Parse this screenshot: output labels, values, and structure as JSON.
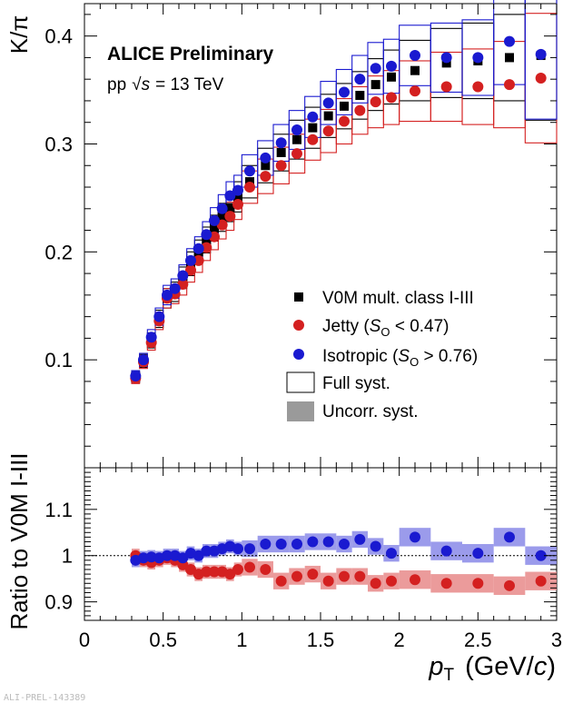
{
  "chart_data": [
    {
      "type": "scatter",
      "panel": "top",
      "ylabel": "K/π",
      "ylim": [
        0.0,
        0.43
      ],
      "xlim": [
        0,
        3
      ],
      "yticks": [
        "0.1",
        "0.2",
        "0.3",
        "0.4"
      ],
      "ytick_values": [
        0.1,
        0.2,
        0.3,
        0.4
      ],
      "title": "ALICE Preliminary",
      "subtitle_prefix": "pp",
      "subtitle_sqrt": "√",
      "subtitle_s": "s",
      "subtitle_suffix": "= 13 TeV",
      "x": [
        0.325,
        0.375,
        0.425,
        0.475,
        0.525,
        0.575,
        0.625,
        0.675,
        0.725,
        0.775,
        0.825,
        0.875,
        0.925,
        0.975,
        1.05,
        1.15,
        1.25,
        1.35,
        1.45,
        1.55,
        1.65,
        1.75,
        1.85,
        1.95,
        2.1,
        2.3,
        2.5,
        2.7,
        2.9
      ],
      "bin_width": [
        0.05,
        0.05,
        0.05,
        0.05,
        0.05,
        0.05,
        0.05,
        0.05,
        0.05,
        0.05,
        0.05,
        0.05,
        0.05,
        0.05,
        0.1,
        0.1,
        0.1,
        0.1,
        0.1,
        0.1,
        0.1,
        0.1,
        0.1,
        0.1,
        0.2,
        0.2,
        0.2,
        0.2,
        0.2
      ],
      "series": [
        {
          "name_text": "V0M mult. class I-III",
          "color": "#000000",
          "marker": "square",
          "values": [
            0.084,
            0.099,
            0.118,
            0.138,
            0.157,
            0.163,
            0.176,
            0.189,
            0.2,
            0.211,
            0.222,
            0.232,
            0.241,
            0.251,
            0.265,
            0.28,
            0.292,
            0.304,
            0.315,
            0.326,
            0.335,
            0.345,
            0.355,
            0.362,
            0.368,
            0.375,
            0.377,
            0.38,
            0.382
          ],
          "syst": [
            0.005,
            0.006,
            0.007,
            0.008,
            0.009,
            0.009,
            0.01,
            0.011,
            0.011,
            0.012,
            0.012,
            0.013,
            0.013,
            0.014,
            0.015,
            0.016,
            0.017,
            0.018,
            0.019,
            0.02,
            0.021,
            0.022,
            0.024,
            0.025,
            0.028,
            0.032,
            0.035,
            0.04,
            0.06
          ]
        },
        {
          "name_pre": "Jetty (",
          "name_var": "S",
          "name_sub": "O",
          "name_post": " < 0.47)",
          "color": "#d42020",
          "marker": "circle",
          "values": [
            0.083,
            0.098,
            0.116,
            0.136,
            0.157,
            0.161,
            0.17,
            0.183,
            0.192,
            0.204,
            0.214,
            0.225,
            0.233,
            0.244,
            0.26,
            0.27,
            0.28,
            0.291,
            0.304,
            0.312,
            0.321,
            0.331,
            0.339,
            0.343,
            0.349,
            0.353,
            0.353,
            0.355,
            0.361
          ],
          "syst": [
            0.005,
            0.006,
            0.007,
            0.008,
            0.009,
            0.009,
            0.01,
            0.011,
            0.011,
            0.012,
            0.012,
            0.013,
            0.013,
            0.014,
            0.015,
            0.016,
            0.017,
            0.018,
            0.019,
            0.02,
            0.021,
            0.022,
            0.024,
            0.025,
            0.028,
            0.032,
            0.035,
            0.04,
            0.06
          ]
        },
        {
          "name_pre": "Isotropic (",
          "name_var": "S",
          "name_sub": "O",
          "name_post": " > 0.76)",
          "color": "#1a1ad0",
          "marker": "circle",
          "values": [
            0.085,
            0.1,
            0.121,
            0.14,
            0.16,
            0.166,
            0.178,
            0.192,
            0.203,
            0.216,
            0.229,
            0.24,
            0.252,
            0.257,
            0.275,
            0.287,
            0.301,
            0.313,
            0.325,
            0.338,
            0.348,
            0.36,
            0.37,
            0.372,
            0.382,
            0.38,
            0.38,
            0.395,
            0.383
          ],
          "syst": [
            0.005,
            0.006,
            0.007,
            0.008,
            0.009,
            0.009,
            0.01,
            0.011,
            0.011,
            0.012,
            0.012,
            0.013,
            0.013,
            0.014,
            0.015,
            0.016,
            0.017,
            0.018,
            0.019,
            0.02,
            0.021,
            0.022,
            0.024,
            0.025,
            0.028,
            0.032,
            0.035,
            0.04,
            0.06
          ]
        }
      ],
      "legend": {
        "full_syst": "Full syst.",
        "uncorr_syst": "Uncorr. syst."
      }
    },
    {
      "type": "scatter",
      "panel": "ratio",
      "ylabel": "Ratio to V0M I-III",
      "ylim": [
        0.86,
        1.19
      ],
      "yticks": [
        "0.9",
        "1",
        "1.1"
      ],
      "ytick_values": [
        0.9,
        1.0,
        1.1
      ],
      "xlim": [
        0,
        3
      ],
      "xticks": [
        "0",
        "0.5",
        "1",
        "1.5",
        "2",
        "2.5",
        "3"
      ],
      "xtick_values": [
        0,
        0.5,
        1,
        1.5,
        2,
        2.5,
        3
      ],
      "xlabel_var": "p",
      "xlabel_sub": "T",
      "xlabel_unit_pre": "(GeV/",
      "xlabel_unit_var": "c",
      "xlabel_unit_post": ")",
      "reference_line": 1.0,
      "x": [
        0.325,
        0.375,
        0.425,
        0.475,
        0.525,
        0.575,
        0.625,
        0.675,
        0.725,
        0.775,
        0.825,
        0.875,
        0.925,
        0.975,
        1.05,
        1.15,
        1.25,
        1.35,
        1.45,
        1.55,
        1.65,
        1.75,
        1.85,
        1.95,
        2.1,
        2.3,
        2.5,
        2.7,
        2.9
      ],
      "series": [
        {
          "color": "#d42020",
          "band_color": "#e88a8a",
          "values": [
            1.0,
            0.99,
            0.985,
            0.99,
            0.995,
            0.99,
            0.98,
            0.97,
            0.96,
            0.965,
            0.965,
            0.965,
            0.96,
            0.97,
            0.975,
            0.97,
            0.945,
            0.955,
            0.96,
            0.945,
            0.955,
            0.955,
            0.94,
            0.945,
            0.948,
            0.94,
            0.94,
            0.935,
            0.945
          ],
          "syst": [
            0.015,
            0.015,
            0.015,
            0.015,
            0.015,
            0.015,
            0.015,
            0.015,
            0.015,
            0.015,
            0.015,
            0.015,
            0.015,
            0.015,
            0.018,
            0.018,
            0.018,
            0.018,
            0.018,
            0.018,
            0.018,
            0.018,
            0.018,
            0.018,
            0.02,
            0.02,
            0.02,
            0.02,
            0.02
          ]
        },
        {
          "color": "#1a1ad0",
          "band_color": "#8a8ae8",
          "values": [
            0.99,
            0.995,
            0.997,
            0.995,
            1.0,
            1.0,
            0.995,
            1.005,
            1.0,
            1.01,
            1.01,
            1.015,
            1.02,
            1.015,
            1.015,
            1.025,
            1.025,
            1.025,
            1.03,
            1.03,
            1.025,
            1.035,
            1.02,
            1.005,
            1.04,
            1.01,
            1.005,
            1.04,
            1.0
          ]
        }
      ]
    }
  ],
  "watermark": "ALI-PREL-143389"
}
